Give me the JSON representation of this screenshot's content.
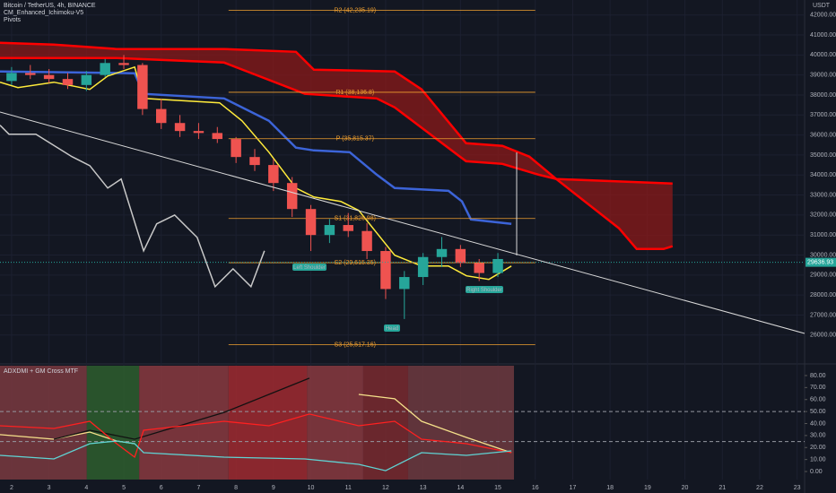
{
  "chart_data": [
    {
      "type": "candlestick",
      "title": "Bitcoin / TetherUS, 4h, BINANCE",
      "indicators": [
        "CM_Enhanced_Ichimoku-V5",
        "Pivots"
      ],
      "unit": "USDT",
      "xlim": [
        1.69,
        23.2
      ],
      "xticks": [
        2,
        3,
        4,
        5,
        6,
        7,
        8,
        9,
        10,
        11,
        12,
        13,
        14,
        15,
        16,
        17,
        18,
        19,
        20,
        21,
        22,
        23
      ],
      "ylim": [
        24600,
        42750
      ],
      "yticks": [
        {
          "value": 26000,
          "label": "26000.00"
        },
        {
          "value": 27000,
          "label": "27000.00"
        },
        {
          "value": 28000,
          "label": "28000.00"
        },
        {
          "value": 29000,
          "label": "29000.00"
        },
        {
          "value": 30000,
          "label": "30000.00"
        },
        {
          "value": 31000,
          "label": "31000.00"
        },
        {
          "value": 32000,
          "label": "32000.00"
        },
        {
          "value": 33000,
          "label": "33000.00"
        },
        {
          "value": 34000,
          "label": "34000.00"
        },
        {
          "value": 35000,
          "label": "35000.00"
        },
        {
          "value": 36000,
          "label": "36000.00"
        },
        {
          "value": 37000,
          "label": "37000.00"
        },
        {
          "value": 38000,
          "label": "38000.00"
        },
        {
          "value": 39000,
          "label": "39000.00"
        },
        {
          "value": 40000,
          "label": "40000.00"
        },
        {
          "value": 41000,
          "label": "41000.00"
        },
        {
          "value": 42000,
          "label": "42000.00"
        }
      ],
      "up_color": "#26a69a",
      "down_color": "#ef5350",
      "candles": {
        "x": [
          2.0,
          2.5,
          3.0,
          3.5,
          4.0,
          4.5,
          5.0,
          5.5,
          6.0,
          6.5,
          7.0,
          7.5,
          8.0,
          8.5,
          9.0,
          9.5,
          10.0,
          10.5,
          11.0,
          11.5,
          12.0,
          12.5,
          13.0,
          13.5,
          14.0,
          14.5,
          15.0
        ],
        "open": [
          38700,
          39100,
          39000,
          38800,
          38500,
          39000,
          39600,
          39500,
          37300,
          36600,
          36200,
          36100,
          35800,
          34900,
          34500,
          33600,
          32300,
          31000,
          31500,
          31200,
          30200,
          28300,
          28900,
          29900,
          30300,
          29600,
          29100
        ],
        "high": [
          39400,
          39500,
          39300,
          39100,
          39200,
          39800,
          40000,
          39600,
          37800,
          37000,
          36600,
          36400,
          35900,
          35300,
          34800,
          33900,
          32500,
          31800,
          32100,
          31600,
          30400,
          29200,
          30100,
          30900,
          30500,
          29800,
          30100
        ],
        "low": [
          38500,
          38800,
          38600,
          38300,
          38200,
          38900,
          39300,
          37000,
          36300,
          35900,
          35800,
          35600,
          34600,
          34200,
          33200,
          31900,
          30200,
          30600,
          30900,
          29800,
          27800,
          26800,
          28500,
          29400,
          29400,
          28700,
          28900
        ],
        "close": [
          39100,
          39000,
          38800,
          38500,
          39000,
          39600,
          39500,
          37300,
          36600,
          36200,
          36100,
          35800,
          34900,
          34500,
          33600,
          32300,
          31000,
          31500,
          31200,
          30200,
          28300,
          28900,
          29900,
          30300,
          29600,
          29100,
          29800
        ]
      },
      "lines": [
        {
          "color": "#ff0000",
          "x": [
            1.69,
            3.13,
            4.81,
            7.68,
            9.6,
            10.08,
            12.24,
            12.96,
            14.15,
            15.12,
            15.84,
            16.56,
            19.67
          ],
          "values": [
            40610,
            40520,
            40300,
            40300,
            40160,
            39270,
            39180,
            38280,
            35590,
            35460,
            34920,
            33800,
            33570
          ]
        },
        {
          "color": "#ff0000",
          "x": [
            1.69,
            4.81,
            7.68,
            9.84,
            11.76,
            12.24,
            14.15,
            15.12,
            16.08,
            16.56,
            18.24,
            18.71,
            19.43,
            19.67
          ],
          "values": [
            39850,
            39850,
            39620,
            38060,
            37830,
            37380,
            34690,
            34560,
            34020,
            33800,
            31330,
            30300,
            30300,
            30440
          ]
        },
        {
          "color": "#3c64d8",
          "x": [
            1.69,
            5.29,
            5.53,
            7.68,
            8.88,
            9.6,
            10.08,
            11.04,
            11.76,
            12.24,
            13.68,
            14.04,
            14.28,
            15.36
          ],
          "values": [
            39180,
            39090,
            38060,
            37830,
            36710,
            35370,
            35230,
            35140,
            34020,
            33350,
            33210,
            32680,
            31780,
            31560
          ]
        },
        {
          "color": "#ffeb3b",
          "x": [
            1.69,
            2.17,
            3.13,
            4.09,
            4.57,
            5.29,
            5.53,
            7.56,
            8.16,
            8.88,
            9.6,
            10.08,
            10.8,
            11.28,
            11.76,
            12.24,
            12.96,
            13.68,
            14.16,
            14.76,
            15.36
          ],
          "values": [
            38640,
            38370,
            38640,
            38280,
            38950,
            39400,
            37830,
            37610,
            36710,
            35140,
            33350,
            32900,
            32680,
            32230,
            31110,
            29990,
            29450,
            29450,
            28960,
            28780,
            29450
          ]
        },
        {
          "color": "#c8c8c8",
          "x": [
            1.69,
            1.93,
            2.65,
            3.61,
            4.09,
            4.57,
            4.93,
            5.53,
            5.88,
            6.36,
            6.96,
            7.44,
            7.92,
            8.4,
            8.76
          ],
          "values": [
            36490,
            36040,
            36040,
            34920,
            34470,
            33350,
            33800,
            30210,
            31560,
            32000,
            30880,
            28420,
            29310,
            28420,
            30210
          ]
        }
      ],
      "fill_between": [
        0,
        1
      ],
      "fill_color": "#8b1a1a",
      "pivot_color": "#f0a030",
      "pivot_span": [
        7.8,
        16.0
      ],
      "pivots": [
        {
          "label": "R2 (42,235.19)",
          "value": 42235.19
        },
        {
          "label": "R1 (38,136.8)",
          "value": 38136.8
        },
        {
          "label": "P (35,815.37)",
          "value": 35815.37
        },
        {
          "label": "S1 (31,826.98)",
          "value": 31826.98
        },
        {
          "label": "S2 (29,615.35)",
          "value": 29615.35
        },
        {
          "label": "S3 (25,517.16)",
          "value": 25517.16
        }
      ],
      "last_price": 29636.93,
      "annotations": [
        "Left Shoulder",
        "Head",
        "Right Shoulder"
      ]
    },
    {
      "type": "line",
      "title": "ADXDMI + GM Cross MTF",
      "xlim": [
        1.69,
        23.2
      ],
      "ylim": [
        -6.7,
        88.2
      ],
      "yticks": [
        {
          "value": 0,
          "label": "0.00"
        },
        {
          "value": 10,
          "label": "10.00"
        },
        {
          "value": 20,
          "label": "20.00"
        },
        {
          "value": 30,
          "label": "30.00"
        },
        {
          "value": 40,
          "label": "40.00"
        },
        {
          "value": 50,
          "label": "50.00"
        },
        {
          "value": 60,
          "label": "60.00"
        },
        {
          "value": 70,
          "label": "70.00"
        },
        {
          "value": 80,
          "label": "80.00"
        }
      ],
      "levels": [
        50,
        25
      ],
      "bands": [
        {
          "from": 1.69,
          "to": 4.01,
          "color": "#7a3a3f"
        },
        {
          "from": 4.01,
          "to": 5.41,
          "color": "#2e5e2e"
        },
        {
          "from": 5.41,
          "to": 7.8,
          "color": "#8a3a40"
        },
        {
          "from": 7.8,
          "to": 9.9,
          "color": "#a02a30"
        },
        {
          "from": 9.9,
          "to": 11.4,
          "color": "#8a3a40"
        },
        {
          "from": 11.4,
          "to": 12.6,
          "color": "#7a2a2f"
        },
        {
          "from": 12.6,
          "to": 15.43,
          "color": "#6e3a3f"
        }
      ],
      "series": [
        {
          "color": "#f5e08a",
          "x": [
            1.69,
            3.13,
            4.09,
            4.81,
            5.29,
            9.96,
            11.28,
            12.24,
            12.96,
            14.16,
            15.36
          ],
          "values": [
            30.7,
            26.9,
            32.9,
            25.4,
            23.2,
            null,
            64.3,
            60.6,
            41.9,
            28.4,
            15.7
          ]
        },
        {
          "color": "#111111",
          "x": [
            3.13,
            4.09,
            5.29,
            7.68,
            9.96
          ],
          "values": [
            26.9,
            34.4,
            26.9,
            49.3,
            77.8
          ]
        },
        {
          "color": "#ff2020",
          "x": [
            1.69,
            3.13,
            4.09,
            4.81,
            5.29,
            5.53,
            7.68,
            8.88,
            9.96,
            11.28,
            12.24,
            12.96,
            14.16,
            15.36
          ],
          "values": [
            38.1,
            35.9,
            41.9,
            23.2,
            12.0,
            34.4,
            41.9,
            38.1,
            47.9,
            38.1,
            41.9,
            26.9,
            23.2,
            15.7
          ]
        },
        {
          "color": "#5fd3d3",
          "x": [
            1.69,
            3.13,
            4.09,
            4.81,
            5.29,
            5.53,
            7.68,
            9.84,
            11.28,
            12.0,
            12.96,
            14.16,
            15.36
          ],
          "values": [
            13.5,
            10.5,
            23.2,
            25.4,
            23.2,
            15.7,
            12.0,
            10.5,
            6.0,
            0.7,
            15.7,
            13.5,
            17.2
          ]
        }
      ]
    }
  ]
}
